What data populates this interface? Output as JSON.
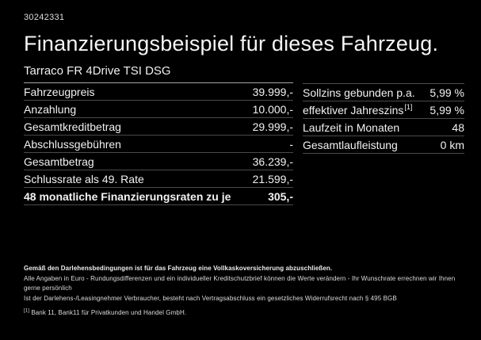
{
  "page": {
    "ref_number": "30242331",
    "title": "Finanzierungsbeispiel für dieses Fahrzeug.",
    "vehicle_model": "Tarraco FR 4Drive TSI DSG"
  },
  "finance_table": {
    "rows": [
      {
        "label": "Fahrzeugpreis",
        "value": "39.999,-"
      },
      {
        "label": "Anzahlung",
        "value": "10.000,-"
      },
      {
        "label": "Gesamtkreditbetrag",
        "value": "29.999,-"
      },
      {
        "label": "Abschlussgebühren",
        "value": "-"
      },
      {
        "label": "Gesamtbetrag",
        "value": "36.239,-"
      },
      {
        "label": "Schlussrate als 49. Rate",
        "value": "21.599,-"
      }
    ],
    "highlight_row": {
      "label": "48 monatliche Finanzierungsraten zu je",
      "value": "305,-"
    }
  },
  "conditions_table": {
    "rows": [
      {
        "label": "Sollzins gebunden p.a.",
        "sup": "",
        "value": "5,99 %"
      },
      {
        "label": "effektiver Jahreszins",
        "sup": "[1]",
        "value": "5,99 %"
      },
      {
        "label": "Laufzeit in Monaten",
        "sup": "",
        "value": "48"
      },
      {
        "label": "Gesamtlaufleistung",
        "sup": "",
        "value": "0 km"
      }
    ]
  },
  "footnotes": {
    "line1": "Gemäß den Darlehensbedingungen ist für das Fahrzeug eine Vollkaskoversicherung abzuschließen.",
    "line2": "Alle Angaben in Euro - Rundungsdifferenzen und ein individueller Kreditschutzbrief können die Werte verändern - Ihr Wunschrate errechnen wir Ihnen gerne persönlich",
    "line3": "Ist der Darlehens-/Leasingnehmer Verbraucher, besteht nach Vertragsabschluss ein gesetzliches Widerrufsrecht nach § 495 BGB",
    "line4_sup": "[1]",
    "line4": "Bank 11, Bank11 für Privatkunden und Handel GmbH."
  },
  "colors": {
    "background": "#000000",
    "text": "#f2f2f2",
    "separator": "#4a4a4a",
    "subtitle_underline": "#a6a6a6"
  }
}
